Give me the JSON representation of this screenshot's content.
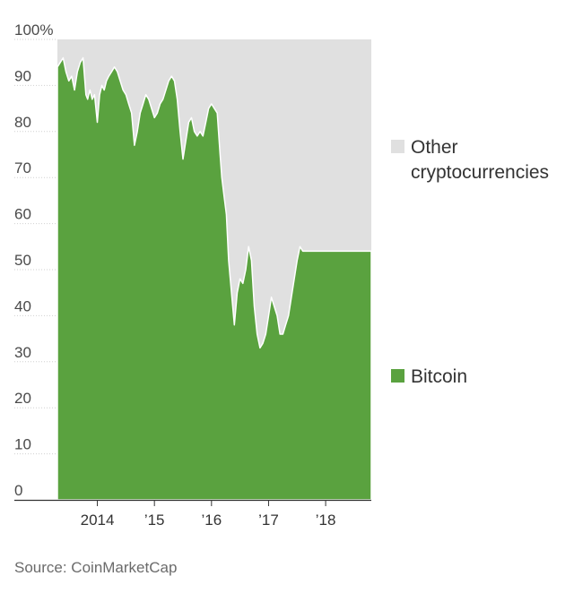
{
  "chart_data": {
    "type": "area",
    "stacked": true,
    "y_unit": "%",
    "ylim": [
      0,
      100
    ],
    "y_ticks": [
      0,
      10,
      20,
      30,
      40,
      50,
      60,
      70,
      80,
      90,
      100
    ],
    "y_tick_labels": [
      "0",
      "10",
      "20",
      "30",
      "40",
      "50",
      "60",
      "70",
      "80",
      "90",
      "100%"
    ],
    "xlim": [
      2013.3,
      2018.8
    ],
    "x_ticks": [
      2014,
      2015,
      2016,
      2017,
      2018
    ],
    "x_tick_labels": [
      "2014",
      "’15",
      "’16",
      "’17",
      "’18"
    ],
    "grid": true,
    "legend_position": "right",
    "series": [
      {
        "name": "Bitcoin",
        "color": "#5aa23f",
        "x": [
          2013.3,
          2013.35,
          2013.4,
          2013.45,
          2013.5,
          2013.55,
          2013.6,
          2013.65,
          2013.7,
          2013.75,
          2013.8,
          2013.83,
          2013.87,
          2013.91,
          2013.95,
          2014.0,
          2014.04,
          2014.08,
          2014.12,
          2014.16,
          2014.2,
          2014.25,
          2014.3,
          2014.35,
          2014.4,
          2014.45,
          2014.5,
          2014.55,
          2014.6,
          2014.65,
          2014.7,
          2014.75,
          2014.8,
          2014.85,
          2014.9,
          2014.95,
          2015.0,
          2015.05,
          2015.1,
          2015.15,
          2015.2,
          2015.25,
          2015.3,
          2015.35,
          2015.4,
          2015.45,
          2015.5,
          2015.55,
          2015.6,
          2015.65,
          2015.7,
          2015.75,
          2015.8,
          2015.85,
          2015.9,
          2015.95,
          2016.0,
          2016.05,
          2016.1,
          2016.15,
          2016.18,
          2016.22,
          2016.26,
          2016.3,
          2016.35,
          2016.4,
          2016.45,
          2016.5,
          2016.55,
          2016.6,
          2016.65,
          2016.7,
          2016.75,
          2016.8,
          2016.85,
          2016.9,
          2016.95,
          2017.0,
          2017.05,
          2017.1,
          2017.15,
          2017.2,
          2017.25,
          2017.3,
          2017.35,
          2017.4,
          2017.45,
          2017.5,
          2017.55,
          2017.6,
          2017.65,
          2017.7,
          2017.75,
          2017.8,
          2017.85,
          2017.9,
          2017.95,
          2018.0,
          2018.05,
          2018.1,
          2018.15,
          2018.2,
          2018.25,
          2018.3,
          2018.35,
          2018.4,
          2018.45,
          2018.5,
          2018.55,
          2018.6,
          2018.65,
          2018.7,
          2018.75,
          2018.8
        ],
        "values": [
          94,
          95,
          96,
          93,
          91,
          92,
          89,
          93,
          95,
          96,
          88,
          87,
          89,
          87,
          88,
          82,
          88,
          90,
          89,
          91,
          92,
          93,
          94,
          93,
          91,
          89,
          88,
          86,
          84,
          77,
          80,
          84,
          86,
          88,
          87,
          85,
          83,
          84,
          86,
          87,
          89,
          91,
          92,
          91,
          87,
          80,
          74,
          78,
          82,
          83,
          80,
          79,
          80,
          79,
          82,
          85,
          86,
          85,
          84,
          75,
          70,
          66,
          62,
          52,
          45,
          38,
          45,
          48,
          47,
          50,
          55,
          52,
          42,
          36,
          33,
          34,
          36,
          40,
          44,
          42,
          40,
          36,
          36,
          38,
          40,
          44,
          48,
          52,
          55,
          54,
          54,
          54,
          54,
          54,
          54,
          54,
          54,
          54,
          54,
          54,
          54,
          54,
          54,
          54,
          54,
          54,
          54,
          54,
          54,
          54,
          54,
          54,
          54,
          54
        ]
      },
      {
        "name": "Other cryptocurrencies",
        "color": "#e0e0e0",
        "fills_to": 100
      }
    ],
    "legend": [
      {
        "label_lines": [
          "Other",
          "cryptocurrencies"
        ],
        "color": "#e0e0e0"
      },
      {
        "label_lines": [
          "Bitcoin"
        ],
        "color": "#5aa23f"
      }
    ]
  },
  "source": "Source: CoinMarketCap"
}
